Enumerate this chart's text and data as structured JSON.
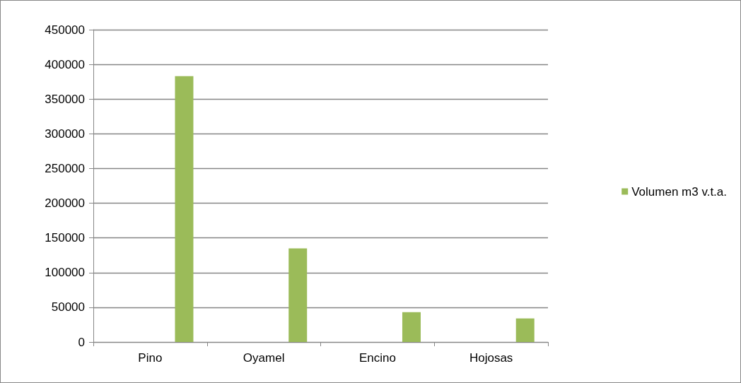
{
  "chart_data": {
    "type": "bar",
    "categories": [
      "Pino",
      "Oyamel",
      "Encino",
      "Hojosas"
    ],
    "series": [
      {
        "name": "Volumen m3 v.t.a.",
        "color": "#9bbb59",
        "values": [
          383000,
          135000,
          43000,
          34000
        ]
      }
    ],
    "ylim": [
      0,
      450000
    ],
    "yticks": [
      0,
      50000,
      100000,
      150000,
      200000,
      250000,
      300000,
      350000,
      400000,
      450000
    ],
    "grid": "y",
    "legend": "right"
  }
}
